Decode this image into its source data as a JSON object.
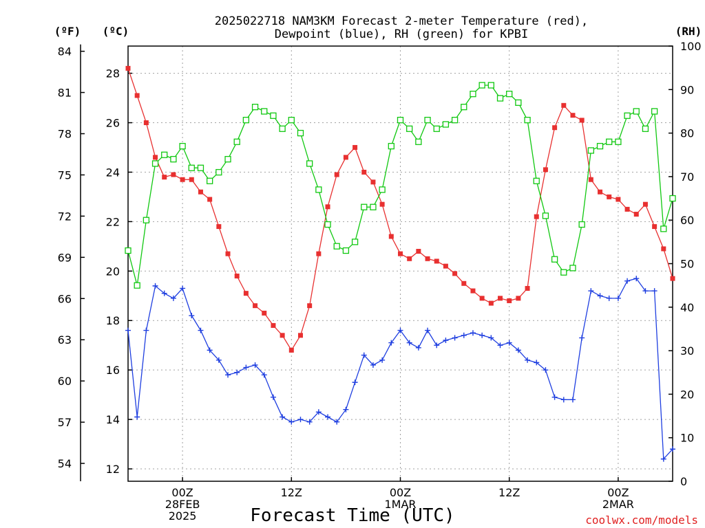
{
  "chart_data": {
    "type": "line",
    "title_line1": "2025022718 NAM3KM Forecast 2-meter Temperature (red),",
    "title_line2": "Dewpoint (blue), RH (green) for KPBI",
    "xlabel": "Forecast Time (UTC)",
    "credit": "coolwx.com/models",
    "unit_labels": {
      "fahrenheit": "(ºF)",
      "celsius": "(ºC)",
      "rh": "(RH)"
    },
    "x_hours_range": [
      -6,
      54
    ],
    "x_tick_labels": [
      {
        "hour": 0,
        "lines": [
          "00Z",
          "28FEB",
          "2025"
        ]
      },
      {
        "hour": 12,
        "lines": [
          "12Z"
        ]
      },
      {
        "hour": 24,
        "lines": [
          "00Z",
          "1MAR"
        ]
      },
      {
        "hour": 36,
        "lines": [
          "12Z"
        ]
      },
      {
        "hour": 48,
        "lines": [
          "00Z",
          "2MAR"
        ]
      }
    ],
    "y_celsius": {
      "range": [
        11.5,
        29.1
      ],
      "ticks": [
        12,
        14,
        16,
        18,
        20,
        22,
        24,
        26,
        28
      ]
    },
    "y_fahrenheit": {
      "ticks": [
        54,
        57,
        60,
        63,
        66,
        69,
        72,
        75,
        78,
        81,
        84
      ]
    },
    "y_rh": {
      "range": [
        0,
        100
      ],
      "ticks": [
        0,
        10,
        20,
        30,
        40,
        50,
        60,
        70,
        80,
        90,
        100
      ]
    },
    "grid": true,
    "colors": {
      "temperature": "#e83030",
      "dewpoint": "#1e3ee0",
      "rh": "#10c810",
      "grid": "#a0a0a0",
      "credit": "#e02020"
    },
    "series": [
      {
        "name": "Temperature",
        "unit": "C",
        "x": [
          -6,
          -5,
          -4,
          -3,
          -2,
          -1,
          0,
          1,
          2,
          3,
          4,
          5,
          6,
          7,
          8,
          9,
          10,
          11,
          12,
          13,
          14,
          15,
          16,
          17,
          18,
          19,
          20,
          21,
          22,
          23,
          24,
          25,
          26,
          27,
          28,
          29,
          30,
          31,
          32,
          33,
          34,
          35,
          36,
          37,
          38,
          39,
          40,
          41,
          42,
          43,
          44,
          45,
          46,
          47,
          48,
          49,
          50,
          51,
          52,
          53,
          54
        ],
        "values": [
          28.2,
          27.1,
          26.0,
          24.6,
          23.8,
          23.9,
          23.7,
          23.7,
          23.2,
          22.9,
          21.8,
          20.7,
          19.8,
          19.1,
          18.6,
          18.3,
          17.8,
          17.4,
          16.8,
          17.4,
          18.6,
          20.7,
          22.6,
          23.9,
          24.6,
          25.0,
          24.0,
          23.6,
          22.7,
          21.4,
          20.7,
          20.5,
          20.8,
          20.5,
          20.4,
          20.2,
          19.9,
          19.5,
          19.2,
          18.9,
          18.7,
          18.9,
          18.8,
          18.9,
          19.3,
          22.2,
          24.1,
          25.8,
          26.7,
          26.3,
          26.1,
          23.7,
          23.2,
          23.0,
          22.9,
          22.5,
          22.3,
          22.7,
          21.8,
          20.9,
          19.7
        ]
      },
      {
        "name": "Dewpoint",
        "unit": "C",
        "x": [
          -6,
          -5,
          -4,
          -3,
          -2,
          -1,
          0,
          1,
          2,
          3,
          4,
          5,
          6,
          7,
          8,
          9,
          10,
          11,
          12,
          13,
          14,
          15,
          16,
          17,
          18,
          19,
          20,
          21,
          22,
          23,
          24,
          25,
          26,
          27,
          28,
          29,
          30,
          31,
          32,
          33,
          34,
          35,
          36,
          37,
          38,
          39,
          40,
          41,
          42,
          43,
          44,
          45,
          46,
          47,
          48,
          49,
          50,
          51,
          52,
          53,
          54
        ],
        "values": [
          17.6,
          14.1,
          17.6,
          19.4,
          19.1,
          18.9,
          19.3,
          18.2,
          17.6,
          16.8,
          16.4,
          15.8,
          15.9,
          16.1,
          16.2,
          15.8,
          14.9,
          14.1,
          13.9,
          14.0,
          13.9,
          14.3,
          14.1,
          13.9,
          14.4,
          15.5,
          16.6,
          16.2,
          16.4,
          17.1,
          17.6,
          17.1,
          16.9,
          17.6,
          17.0,
          17.2,
          17.3,
          17.4,
          17.5,
          17.4,
          17.3,
          17.0,
          17.1,
          16.8,
          16.4,
          16.3,
          16.0,
          14.9,
          14.8,
          14.8,
          17.3,
          19.2,
          19.0,
          18.9,
          18.9,
          19.6,
          19.7,
          19.2,
          19.2,
          12.4,
          12.8
        ]
      },
      {
        "name": "RH",
        "unit": "%",
        "x": [
          -6,
          -5,
          -4,
          -3,
          -2,
          -1,
          0,
          1,
          2,
          3,
          4,
          5,
          6,
          7,
          8,
          9,
          10,
          11,
          12,
          13,
          14,
          15,
          16,
          17,
          18,
          19,
          20,
          21,
          22,
          23,
          24,
          25,
          26,
          27,
          28,
          29,
          30,
          31,
          32,
          33,
          34,
          35,
          36,
          37,
          38,
          39,
          40,
          41,
          42,
          43,
          44,
          45,
          46,
          47,
          48,
          49,
          50,
          51,
          52,
          53,
          54
        ],
        "values": [
          53,
          45,
          60,
          73,
          75,
          74,
          77,
          72,
          72,
          69,
          71,
          74,
          78,
          83,
          86,
          85,
          84,
          81,
          83,
          80,
          73,
          67,
          59,
          54,
          53,
          55,
          63,
          63,
          67,
          77,
          83,
          81,
          78,
          83,
          81,
          82,
          83,
          86,
          89,
          91,
          91,
          88,
          89,
          87,
          83,
          69,
          61,
          51,
          48,
          49,
          59,
          76,
          77,
          78,
          78,
          84,
          85,
          81,
          85,
          58,
          65
        ]
      }
    ]
  }
}
